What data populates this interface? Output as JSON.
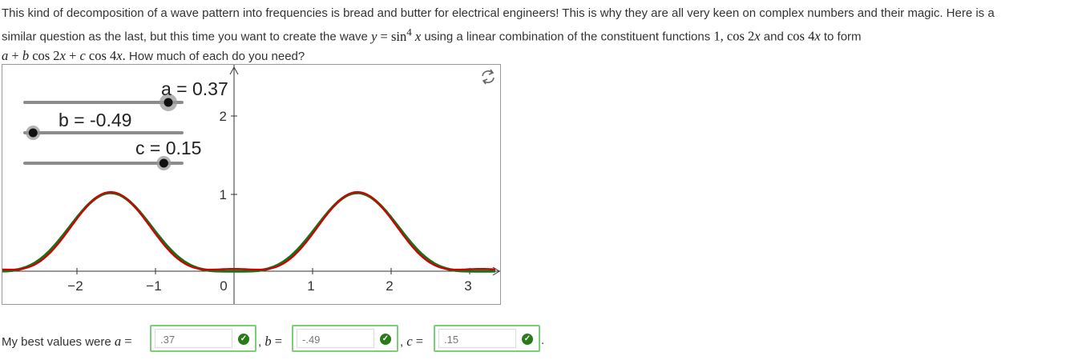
{
  "question": {
    "line1": "This kind of decomposition of a wave pattern into frequencies is bread and butter for electrical engineers! This is why they are all very keen on complex numbers and their magic. Here is a",
    "line2_a": "similar question as the last, but this time you want to create the wave",
    "wave_eq_y": "y",
    "wave_eq_eq": " = sin",
    "wave_eq_exp": "4",
    "wave_eq_x": " x",
    "line2_b": " using a linear combination of the constituent functions",
    "fn1": "1, cos 2",
    "fn1_x": "x",
    "line2_c": " and ",
    "fn2": "cos 4",
    "fn2_x": "x",
    "line2_d": " to form",
    "form_a": "a",
    "form_plus1": " + ",
    "form_b": "b",
    "form_cos2": " cos 2",
    "form_x1": "x",
    "form_plus2": " + ",
    "form_c": "c",
    "form_cos4": " cos 4",
    "form_x2": "x",
    "form_dot": ".",
    "line3_end": "How much of each do you need?"
  },
  "graph": {
    "sliders": [
      {
        "name": "a",
        "label": "a = 0.37",
        "value": 0.37
      },
      {
        "name": "b",
        "label": "b = -0.49",
        "value": -0.49
      },
      {
        "name": "c",
        "label": "c = 0.15",
        "value": 0.15
      }
    ],
    "x_ticks": [
      "−2",
      "−1",
      "0",
      "1",
      "2",
      "3"
    ],
    "y_ticks": [
      "1",
      "2"
    ],
    "target_color": "#1a6e1a",
    "fit_color": "#d40000",
    "reset_icon": "refresh-icon"
  },
  "answers": {
    "intro": "My best values were",
    "a_label": "a",
    "b_label": "b",
    "c_label": "c",
    "eq": " =",
    "a_value": ".37",
    "b_value": "-.49",
    "c_value": ".15",
    "check_icon": "check-icon"
  }
}
